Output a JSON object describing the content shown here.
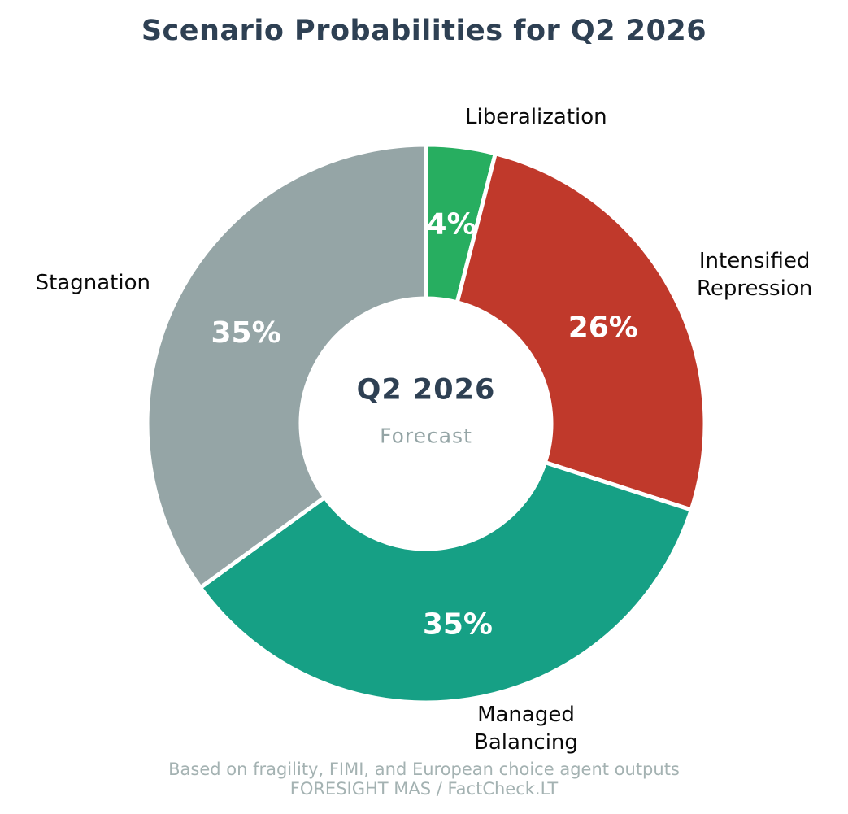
{
  "title": "Scenario Probabilities for Q2 2026",
  "center": {
    "line1": "Q2 2026",
    "line2": "Forecast"
  },
  "footer": {
    "line1": "Based on fragility, FIMI, and European choice agent outputs",
    "line2": "FORESIGHT MAS / FactCheck.LT"
  },
  "palette": {
    "title_color": "#2e4053",
    "subtitle_gray": "#95a5a6",
    "footer_gray": "#a4b2b2",
    "label_black": "#0a0a0a",
    "pct_white": "#ffffff",
    "separator_white": "#ffffff"
  },
  "chart_data": {
    "type": "pie",
    "subtype": "donut",
    "title": "Scenario Probabilities for Q2 2026",
    "categories": [
      "Liberalization",
      "Intensified Repression",
      "Managed Balancing",
      "Stagnation"
    ],
    "values": [
      4,
      26,
      35,
      35
    ],
    "pct_labels": [
      "4%",
      "26%",
      "35%",
      "35%"
    ],
    "label_lines": [
      [
        "Liberalization"
      ],
      [
        "Intensified",
        "Repression"
      ],
      [
        "Managed",
        "Balancing"
      ],
      [
        "Stagnation"
      ]
    ],
    "colors": [
      "#27ae60",
      "#c0392b",
      "#16a085",
      "#95a5a6"
    ],
    "start_angle_deg": 0,
    "direction": "clockwise",
    "wedge_edge_color": "#ffffff",
    "center_label": "Q2 2026",
    "center_sublabel": "Forecast",
    "legend": "none",
    "grid": false
  }
}
